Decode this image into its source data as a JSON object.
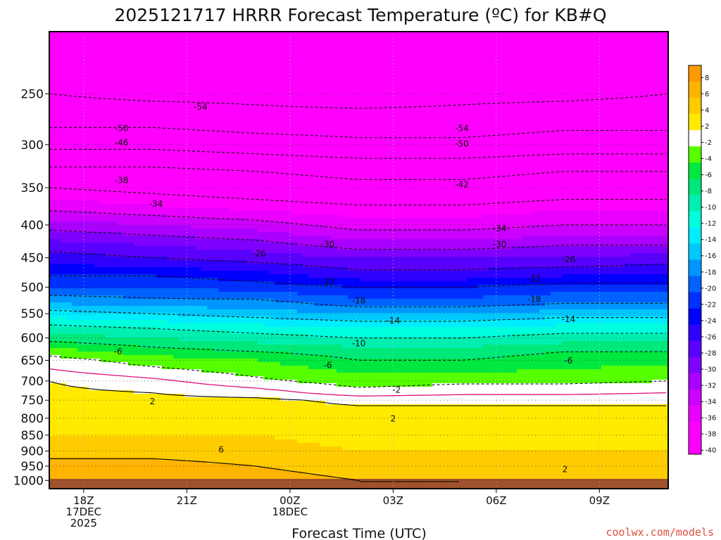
{
  "chart_data": {
    "type": "heatmap",
    "title": "2025121717 HRRR Forecast Temperature (ºC) for KB#Q",
    "xlabel": "Forecast Time (UTC)",
    "ylabel": "",
    "x_ticks": [
      {
        "hour": 1,
        "lines": [
          "18Z",
          "17DEC",
          "2025"
        ]
      },
      {
        "hour": 4,
        "lines": [
          "21Z"
        ]
      },
      {
        "hour": 7,
        "lines": [
          "00Z",
          "18DEC"
        ]
      },
      {
        "hour": 10,
        "lines": [
          "03Z"
        ]
      },
      {
        "hour": 13,
        "lines": [
          "06Z"
        ]
      },
      {
        "hour": 16,
        "lines": [
          "09Z"
        ]
      }
    ],
    "xlim": [
      0,
      18
    ],
    "y_ticks": [
      250,
      300,
      350,
      400,
      450,
      500,
      550,
      600,
      650,
      700,
      750,
      800,
      850,
      900,
      950,
      1000
    ],
    "ylim_hPa": [
      1030,
      200
    ],
    "y_scale": "log",
    "grid": true,
    "colorbar": {
      "labels": [
        "8",
        "6",
        "4",
        "2",
        "-2",
        "-4",
        "-6",
        "-8",
        "-10",
        "-12",
        "-14",
        "-16",
        "-18",
        "-20",
        "-22",
        "-24",
        "-26",
        "-28",
        "-30",
        "-32",
        "-34",
        "-36",
        "-38",
        "-40"
      ],
      "colors": [
        "#ff9900",
        "#ffb400",
        "#ffcc00",
        "#ffea00",
        "#ffffff",
        "#55ff00",
        "#00e840",
        "#00e87a",
        "#00efb0",
        "#00ffdd",
        "#00ecff",
        "#00c8ff",
        "#0095ff",
        "#0063ff",
        "#0030ff",
        "#0000ff",
        "#3000ff",
        "#5a00ff",
        "#8000ff",
        "#aa00ff",
        "#cc00ff",
        "#ea00ff",
        "#ff00ff",
        "#ff00ff"
      ]
    },
    "profile_hPa": [
      200,
      250,
      270,
      300,
      330,
      350,
      380,
      400,
      430,
      450,
      480,
      500,
      530,
      550,
      580,
      600,
      630,
      650,
      680,
      700,
      730,
      750,
      780,
      800,
      850,
      900,
      950,
      1000
    ],
    "profiles": [
      {
        "hour": 0,
        "temps": [
          -56,
          -54,
          -52,
          -47,
          -41,
          -38,
          -34,
          -31,
          -27,
          -25,
          -22,
          -20,
          -16,
          -13,
          -9,
          -7,
          -3,
          -1,
          0.5,
          2,
          2.5,
          3,
          2.5,
          3,
          4,
          5,
          7,
          8
        ]
      },
      {
        "hour": 3,
        "temps": [
          -56,
          -55,
          -52,
          -47,
          -41,
          -39,
          -35,
          -32,
          -28,
          -26,
          -22,
          -20,
          -17,
          -14,
          -10,
          -8,
          -5,
          -3,
          -1,
          0.5,
          2,
          2.5,
          3,
          3,
          4,
          5,
          7,
          8
        ]
      },
      {
        "hour": 6,
        "temps": [
          -57,
          -55,
          -53,
          -48,
          -42,
          -40,
          -36,
          -33,
          -29,
          -27,
          -23,
          -21,
          -17,
          -15,
          -11,
          -9,
          -6,
          -4,
          -2.5,
          -1.5,
          1,
          2.5,
          2.8,
          3,
          4,
          4.5,
          6,
          7
        ]
      },
      {
        "hour": 9,
        "temps": [
          -57,
          -56,
          -53,
          -49,
          -43,
          -41,
          -37,
          -35,
          -31,
          -28,
          -25,
          -22,
          -19,
          -16,
          -12,
          -10,
          -7,
          -6,
          -4,
          -3,
          -1.2,
          1.5,
          2.5,
          2.8,
          3.5,
          4,
          5,
          6
        ]
      },
      {
        "hour": 12,
        "temps": [
          -57,
          -55,
          -53,
          -49,
          -43,
          -41,
          -37,
          -35,
          -31,
          -28,
          -25,
          -22,
          -19,
          -16,
          -12,
          -10,
          -7,
          -6,
          -4,
          -2.5,
          -0.5,
          1.5,
          2.5,
          2.8,
          3.5,
          4,
          5,
          6
        ]
      },
      {
        "hour": 15,
        "temps": [
          -56,
          -55,
          -52,
          -48,
          -42,
          -40,
          -36,
          -34,
          -30,
          -28,
          -24,
          -21,
          -18,
          -15,
          -11,
          -9,
          -6,
          -5,
          -3.5,
          -2.5,
          -0.5,
          1.5,
          2.5,
          2.8,
          3.5,
          4,
          4.5,
          5
        ]
      },
      {
        "hour": 18,
        "temps": [
          -56,
          -54,
          -52,
          -48,
          -42,
          -40,
          -36,
          -34,
          -30,
          -27,
          -24,
          -21,
          -18,
          -15,
          -11,
          -9,
          -6,
          -4.5,
          -3,
          -2,
          0,
          1.5,
          2.5,
          2.8,
          3.5,
          4,
          4.5,
          5
        ]
      }
    ],
    "contour_labels": [
      {
        "text": "-54",
        "hour": 4.4,
        "hPa": 262
      },
      {
        "text": "-54",
        "hour": 12.0,
        "hPa": 283
      },
      {
        "text": "-50",
        "hour": 2.1,
        "hPa": 283
      },
      {
        "text": "-50",
        "hour": 12.0,
        "hPa": 299
      },
      {
        "text": "-46",
        "hour": 2.1,
        "hPa": 298
      },
      {
        "text": "-42",
        "hour": 12.0,
        "hPa": 346
      },
      {
        "text": "-38",
        "hour": 2.1,
        "hPa": 341
      },
      {
        "text": "-34",
        "hour": 3.1,
        "hPa": 371
      },
      {
        "text": "-34",
        "hour": 13.1,
        "hPa": 405
      },
      {
        "text": "-30",
        "hour": 8.1,
        "hPa": 429
      },
      {
        "text": "-30",
        "hour": 13.1,
        "hPa": 429
      },
      {
        "text": "-26",
        "hour": 6.1,
        "hPa": 443
      },
      {
        "text": "-26",
        "hour": 15.1,
        "hPa": 453
      },
      {
        "text": "-22",
        "hour": 8.1,
        "hPa": 490
      },
      {
        "text": "-22",
        "hour": 14.1,
        "hPa": 485
      },
      {
        "text": "-18",
        "hour": 9.0,
        "hPa": 525
      },
      {
        "text": "-18",
        "hour": 14.1,
        "hPa": 522
      },
      {
        "text": "-14",
        "hour": 10.0,
        "hPa": 564
      },
      {
        "text": "-14",
        "hour": 15.1,
        "hPa": 561
      },
      {
        "text": "-10",
        "hour": 9.0,
        "hPa": 612
      },
      {
        "text": "-6",
        "hour": 2.0,
        "hPa": 630
      },
      {
        "text": "-6",
        "hour": 8.1,
        "hPa": 662
      },
      {
        "text": "-6",
        "hour": 15.1,
        "hPa": 651
      },
      {
        "text": "-2",
        "hour": 10.1,
        "hPa": 723
      },
      {
        "text": "2",
        "hour": 3.0,
        "hPa": 753
      },
      {
        "text": "2",
        "hour": 10.0,
        "hPa": 801
      },
      {
        "text": "6",
        "hour": 5.0,
        "hPa": 895
      },
      {
        "text": "2",
        "hour": 15.0,
        "hPa": 961
      }
    ]
  },
  "credit": "coolwx.com/models"
}
